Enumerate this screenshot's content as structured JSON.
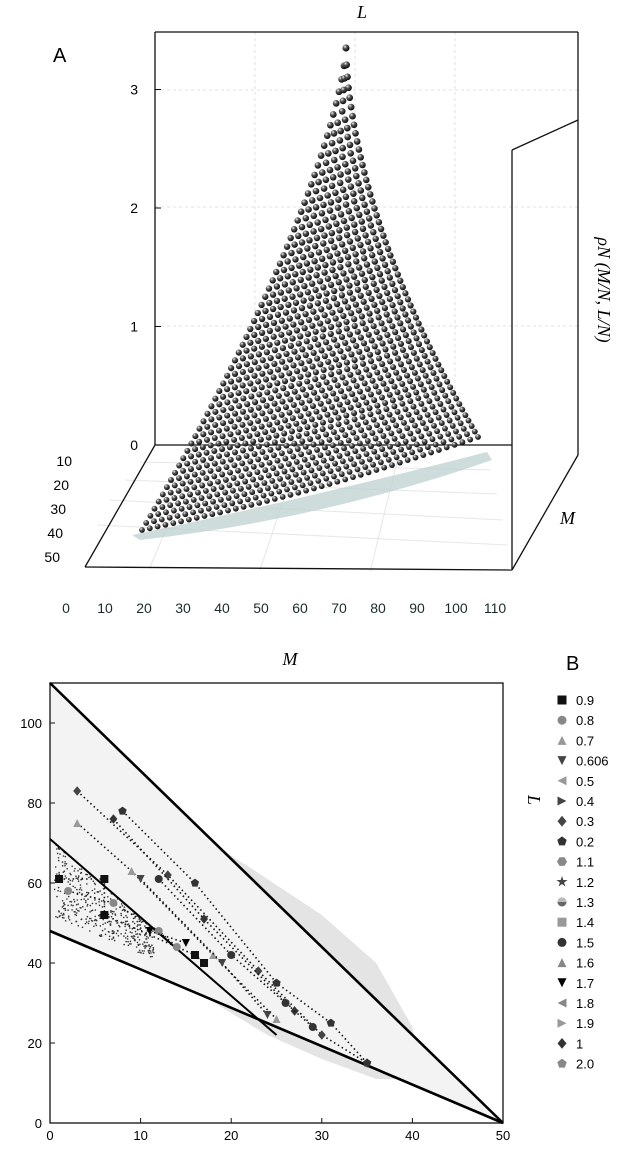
{
  "panelA": {
    "panel_label": "A",
    "top_axis_label": "L",
    "right_axis_label": "M",
    "z_axis_label": "ρN (M/N, L/N)",
    "z_ticks": [
      "0",
      "1",
      "2",
      "3"
    ],
    "l_ticks": [
      "10",
      "20",
      "30",
      "40",
      "50"
    ],
    "m_ticks": [
      "0",
      "10",
      "20",
      "30",
      "40",
      "50",
      "60",
      "70",
      "80",
      "90",
      "100",
      "110"
    ]
  },
  "panelB": {
    "panel_label": "B",
    "top_axis_label": "M",
    "right_axis_label": "L",
    "x_ticks": [
      "0",
      "10",
      "20",
      "30",
      "40",
      "50"
    ],
    "y_ticks": [
      "0",
      "20",
      "40",
      "60",
      "80",
      "100"
    ],
    "legend": [
      {
        "label": "0.9",
        "marker": "square",
        "color": "#111111"
      },
      {
        "label": "0.8",
        "marker": "circle",
        "color": "#888888"
      },
      {
        "label": "0.7",
        "marker": "triangle-up",
        "color": "#999999"
      },
      {
        "label": "0.606",
        "marker": "triangle-down",
        "color": "#444444"
      },
      {
        "label": "0.5",
        "marker": "triangle-left",
        "color": "#999999"
      },
      {
        "label": "0.4",
        "marker": "triangle-right",
        "color": "#444444"
      },
      {
        "label": "0.3",
        "marker": "diamond",
        "color": "#444444"
      },
      {
        "label": "0.2",
        "marker": "pentagon",
        "color": "#333333"
      },
      {
        "label": "1.1",
        "marker": "hexagon",
        "color": "#888888"
      },
      {
        "label": "1.2",
        "marker": "star",
        "color": "#444444"
      },
      {
        "label": "1.3",
        "marker": "half-circle",
        "color": "#666666"
      },
      {
        "label": "1.4",
        "marker": "square",
        "color": "#999999"
      },
      {
        "label": "1.5",
        "marker": "circle",
        "color": "#333333"
      },
      {
        "label": "1.6",
        "marker": "triangle-up",
        "color": "#888888"
      },
      {
        "label": "1.7",
        "marker": "triangle-down",
        "color": "#000000"
      },
      {
        "label": "1.8",
        "marker": "triangle-left",
        "color": "#888888"
      },
      {
        "label": "1.9",
        "marker": "triangle-right",
        "color": "#999999"
      },
      {
        "label": "1",
        "marker": "diamond",
        "color": "#333333"
      },
      {
        "label": "2.0",
        "marker": "pentagon",
        "color": "#888888"
      }
    ]
  },
  "chart_data": [
    {
      "type": "scatter",
      "subtype": "3d-surface-points",
      "xlabel": "M",
      "ylabel": "L",
      "zlabel": "ρN (M/N, L/N)",
      "xlim": [
        0,
        110
      ],
      "ylim": [
        0,
        50
      ],
      "zlim": [
        0,
        3.3
      ],
      "description_values": {
        "peak_z": 3.3,
        "peak_M": 50,
        "peak_L": 0
      }
    },
    {
      "type": "scatter",
      "xlabel": "M",
      "ylabel": "L",
      "xlim": [
        0,
        50
      ],
      "ylim": [
        0,
        110
      ],
      "boundary_lines": [
        {
          "from": [
            0,
            110
          ],
          "to": [
            50,
            0
          ]
        },
        {
          "from": [
            0,
            48
          ],
          "to": [
            50,
            0
          ]
        },
        {
          "from": [
            0,
            71
          ],
          "to": [
            25,
            22
          ]
        }
      ],
      "series": [
        {
          "name": "0.9",
          "x": [
            1,
            6,
            6,
            16,
            17
          ],
          "y": [
            61,
            61,
            52,
            42,
            40
          ]
        },
        {
          "name": "0.8",
          "x": [
            2,
            7,
            12,
            14
          ],
          "y": [
            58,
            55,
            48,
            44
          ]
        },
        {
          "name": "0.3",
          "x": [
            3,
            13,
            23,
            30,
            35
          ],
          "y": [
            83,
            62,
            38,
            22,
            15
          ]
        },
        {
          "name": "1",
          "x": [
            7,
            17,
            27
          ],
          "y": [
            76,
            51,
            28
          ]
        },
        {
          "name": "0.2",
          "x": [
            8,
            16,
            25,
            31,
            35
          ],
          "y": [
            78,
            60,
            35,
            25,
            15
          ]
        },
        {
          "name": "1.5",
          "x": [
            12,
            20,
            26,
            29
          ],
          "y": [
            61,
            42,
            30,
            24
          ]
        },
        {
          "name": "0.7",
          "x": [
            3,
            9,
            18,
            25
          ],
          "y": [
            75,
            63,
            42,
            26
          ]
        },
        {
          "name": "0.606",
          "x": [
            10,
            19,
            24
          ],
          "y": [
            61,
            40,
            27
          ]
        },
        {
          "name": "1.7",
          "x": [
            11,
            15
          ],
          "y": [
            48,
            45
          ]
        }
      ]
    }
  ]
}
